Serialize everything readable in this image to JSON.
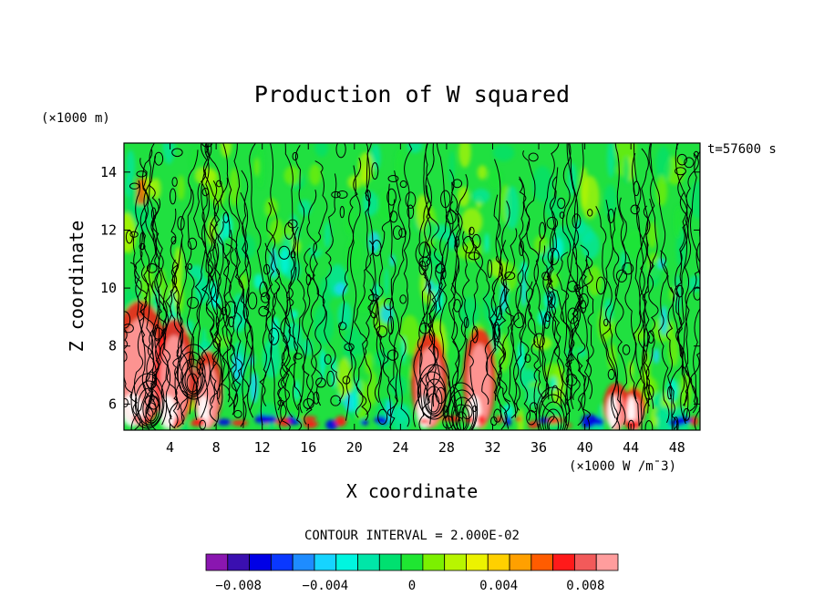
{
  "chart_data": {
    "type": "heatmap",
    "title": "Production of W squared",
    "xlabel": "X coordinate",
    "ylabel": "Z coordinate",
    "x_unit_label": "(×1000 W /m¯3)",
    "y_unit_label": "(×1000 m)",
    "time_label": "t=57600 s",
    "contour_interval_label": "CONTOUR INTERVAL = 2.000E-02",
    "xlim": [
      0,
      50
    ],
    "ylim": [
      5.1,
      15
    ],
    "x_ticks": [
      "4",
      "8",
      "12",
      "16",
      "20",
      "24",
      "28",
      "32",
      "36",
      "40",
      "44",
      "48"
    ],
    "x_tick_values": [
      4,
      8,
      12,
      16,
      20,
      24,
      28,
      32,
      36,
      40,
      44,
      48
    ],
    "y_ticks": [
      "6",
      "8",
      "10",
      "12",
      "14"
    ],
    "y_tick_values": [
      6,
      8,
      10,
      12,
      14
    ],
    "colorbar": {
      "levels": [
        -0.009,
        -0.008,
        -0.007,
        -0.006,
        -0.005,
        -0.004,
        -0.003,
        -0.002,
        -0.001,
        0,
        0.001,
        0.002,
        0.003,
        0.004,
        0.005,
        0.006,
        0.007,
        0.008,
        0.009
      ],
      "tick_labels": [
        "-0.008",
        "-0.004",
        "0",
        "0.004",
        "0.008"
      ],
      "tick_values": [
        -0.008,
        -0.004,
        0,
        0.004,
        0.008
      ],
      "colors": [
        "#8a16b0",
        "#3a0fb0",
        "#0000e6",
        "#0a38ff",
        "#1e8cff",
        "#16d4ff",
        "#00f5e0",
        "#00e6a8",
        "#00e070",
        "#1fe632",
        "#7cf000",
        "#b8f500",
        "#ecf200",
        "#ffd000",
        "#ffa000",
        "#ff5c00",
        "#ff1a1a",
        "#f25a5a",
        "#ff9d9d"
      ]
    },
    "background_color": "#20e040",
    "grid": false,
    "legend": "colorbar-bottom"
  }
}
